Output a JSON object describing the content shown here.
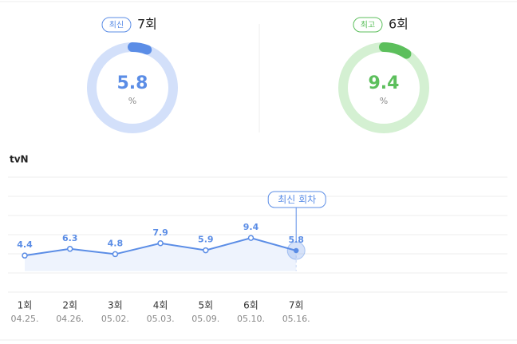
{
  "summary": [
    {
      "badge": "최신",
      "episode": "7회",
      "value": 5.8,
      "unit": "%",
      "color": "#5b8de6",
      "track": "#d3e0fa"
    },
    {
      "badge": "최고",
      "episode": "6회",
      "value": 9.4,
      "unit": "%",
      "color": "#5cbf5c",
      "track": "#d4f0d2"
    }
  ],
  "chart_data": {
    "type": "line",
    "title": "tvN",
    "categories": [
      "1회",
      "2회",
      "3회",
      "4회",
      "5회",
      "6회",
      "7회"
    ],
    "dates": [
      "04.25.",
      "04.26.",
      "05.02.",
      "05.03.",
      "05.09.",
      "05.10.",
      "05.16."
    ],
    "series": [
      {
        "color": "#5b8de6",
        "values": [
          4.4,
          6.3,
          4.8,
          7.9,
          5.9,
          9.4,
          5.8
        ]
      }
    ],
    "ylim": [
      -6,
      26
    ],
    "annotation": "최신 회차"
  }
}
